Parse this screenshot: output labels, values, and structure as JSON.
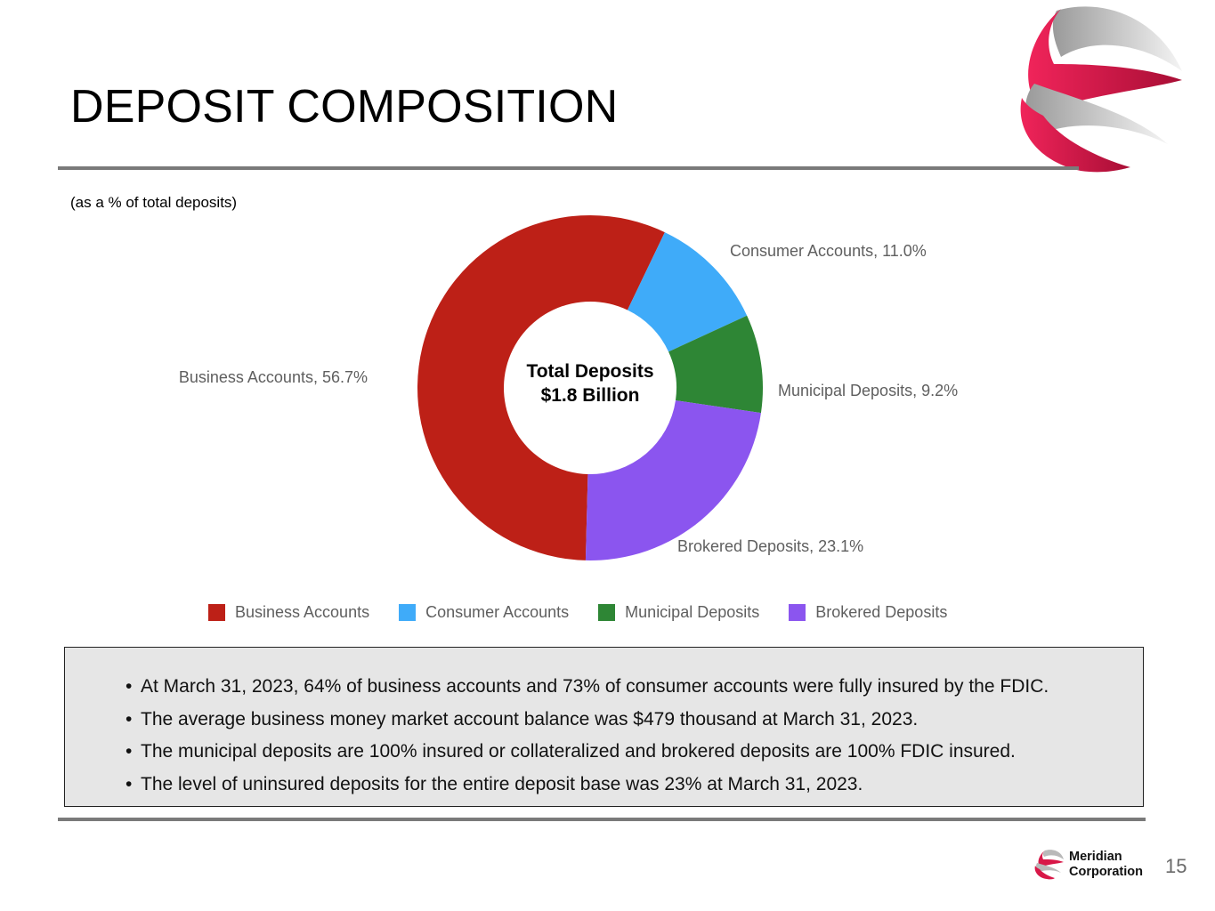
{
  "header": {
    "title": "DEPOSIT COMPOSITION",
    "subtitle": "(as a % of total deposits)"
  },
  "chart_data": {
    "type": "pie",
    "subtype": "donut",
    "title": "",
    "center_label": [
      "Total Deposits",
      "$1.8 Billion"
    ],
    "categories": [
      "Business Accounts",
      "Consumer Accounts",
      "Municipal Deposits",
      "Brokered Deposits"
    ],
    "values": [
      56.7,
      11.0,
      9.2,
      23.1
    ],
    "unit": "%",
    "data_labels": [
      "Business Accounts, 56.7%",
      "Consumer Accounts, 11.0%",
      "Municipal Deposits, 9.2%",
      "Brokered Deposits, 23.1%"
    ],
    "colors": [
      "#bd2017",
      "#3fabf9",
      "#2e8635",
      "#8b55ef"
    ],
    "legend_position": "bottom"
  },
  "notes": [
    "At March 31, 2023, 64% of business accounts and 73% of consumer accounts were fully insured by the FDIC.",
    "The average business money market account balance was $479 thousand at March 31, 2023.",
    "The municipal deposits are 100% insured or collateralized and brokered deposits are 100% FDIC insured.",
    "The level of uninsured deposits for the entire deposit base was 23% at March 31, 2023."
  ],
  "footer": {
    "company_line1": "Meridian",
    "company_line2": "Corporation",
    "page_number": "15",
    "logo_icon": "meridian-swirl-logo-icon"
  },
  "colors": {
    "brand_red": "#e3194b",
    "rule_gray": "#7a7a7a",
    "notes_bg": "#e6e6e6"
  }
}
